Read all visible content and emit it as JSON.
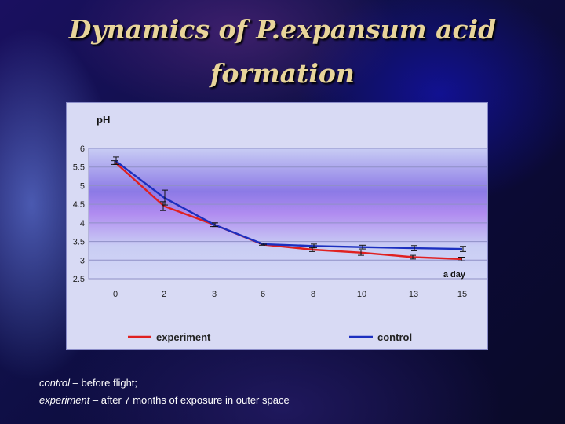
{
  "title_line1": "Dynamics of P.expansum acid",
  "title_line2": "formation",
  "chart_data": {
    "type": "line",
    "ylabel": "pH",
    "xlabel": "a day",
    "categories": [
      "0",
      "2",
      "3",
      "6",
      "8",
      "10",
      "13",
      "15"
    ],
    "ylim": [
      2.5,
      6
    ],
    "yticks": [
      "2.5",
      "3",
      "3.5",
      "4",
      "4.5",
      "5",
      "5.5",
      "6"
    ],
    "grid": true,
    "legend_position": "bottom",
    "series": [
      {
        "name": "experiment",
        "color": "#e02020",
        "values": [
          5.62,
          4.45,
          3.95,
          3.42,
          3.28,
          3.2,
          3.08,
          3.03
        ],
        "errors": [
          0.05,
          0.12,
          0.05,
          0.02,
          0.05,
          0.07,
          0.05,
          0.05
        ]
      },
      {
        "name": "control",
        "color": "#1c2fbf",
        "values": [
          5.67,
          4.68,
          3.95,
          3.43,
          3.38,
          3.35,
          3.32,
          3.3
        ],
        "errors": [
          0.1,
          0.2,
          0.05,
          0.02,
          0.05,
          0.05,
          0.07,
          0.07
        ]
      }
    ]
  },
  "caption": {
    "line1_term": "control",
    "line1_text": " – before flight;",
    "line2_term": "experiment",
    "line2_text": " – after 7 months of exposure in outer space"
  }
}
